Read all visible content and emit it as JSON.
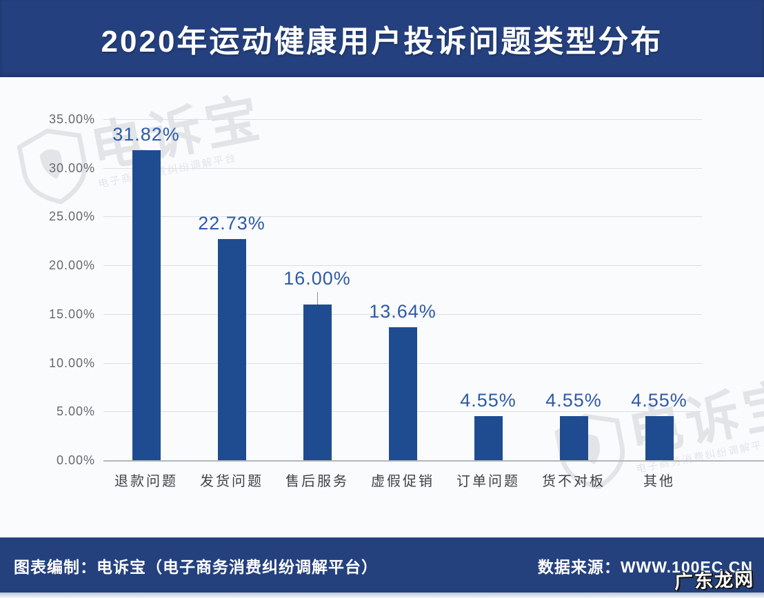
{
  "header": {
    "title": "2020年运动健康用户投诉问题类型分布"
  },
  "footer": {
    "left": "图表编制：电诉宝（电子商务消费纠纷调解平台）",
    "right": "数据来源：WWW.100EC.CN"
  },
  "watermarks": {
    "brand": "电诉宝",
    "tagline": "电子商务消费纠纷调解平台",
    "corner": "广东龙网"
  },
  "colors": {
    "banner": "#24407E",
    "bar": "#1F4C90",
    "value_label": "#2E5AA7"
  },
  "chart_data": {
    "type": "bar",
    "title": "2020年运动健康用户投诉问题类型分布",
    "categories": [
      "退款问题",
      "发货问题",
      "售后服务",
      "虚假促销",
      "订单问题",
      "货不对板",
      "其他"
    ],
    "values": [
      31.82,
      22.73,
      16.0,
      13.64,
      4.55,
      4.55,
      4.55
    ],
    "data_labels": [
      "31.82%",
      "22.73%",
      "16.00%",
      "13.64%",
      "4.55%",
      "4.55%",
      "4.55%"
    ],
    "y_ticks": [
      "35.00%",
      "30.00%",
      "25.00%",
      "20.00%",
      "15.00%",
      "10.00%",
      "5.00%",
      "0.00%"
    ],
    "xlabel": "",
    "ylabel": "",
    "ylim": [
      0,
      35
    ],
    "grid": true,
    "legend": false,
    "leader_line_index": 2
  }
}
